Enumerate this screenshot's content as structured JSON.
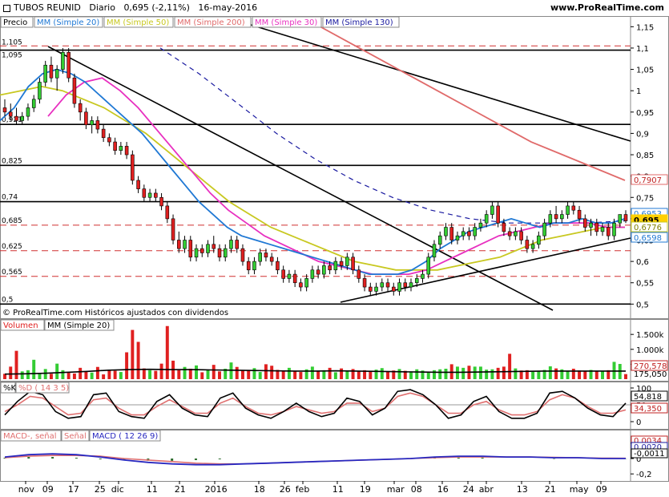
{
  "header": {
    "instrument": "TUBOS REUNID",
    "period": "Diario",
    "quote": "0,695 (-2,11%)",
    "date": "16-may-2016",
    "site": "www.ProRealTime.com"
  },
  "colors": {
    "bull": "#33cc33",
    "bear": "#e02020",
    "ma20": "#1f78d4",
    "ma50": "#c8c820",
    "ma200": "#e06a6a",
    "ma30": "#e830c0",
    "ma130": "#1a1aa0",
    "trend": "#000000"
  },
  "price_panel": {
    "label": "Precio",
    "legends": [
      "MM (Simple 20)",
      "MM (Simple 50)",
      "MM (Simple 200)",
      "MM (Simple 30)",
      "MM (Simple 130)"
    ],
    "footer": "© ProRealTime.com  Históricos ajustados con dividendos",
    "left_levels": [
      "1,105",
      "1,095",
      "0,921",
      "0,825",
      "0,74",
      "0,685",
      "0,625",
      "0,565",
      "0,5"
    ],
    "axis_ticks": [
      "1,15",
      "1,1",
      "1,05",
      "1",
      "0,95",
      "0,9",
      "0,85",
      "0,8",
      "0,75",
      "0,7",
      "0,65",
      "0,6",
      "0,55",
      "0,5"
    ],
    "tags": [
      "0,7907",
      "0,6953",
      "0,695",
      "0,6776",
      "0,6598"
    ]
  },
  "volume_panel": {
    "label": "Volumen",
    "legend": "MM (Simple 20)",
    "axis_ticks": [
      "1.500k",
      "1.000k",
      "500k"
    ],
    "tags": [
      "270,578",
      "175,050"
    ]
  },
  "stoch_panel": {
    "label": "%K",
    "legend": "%D ( 14 3 5)",
    "axis_ticks": [
      "100",
      "50",
      "0"
    ],
    "tags": [
      "54,818",
      "34,350"
    ]
  },
  "macd_panel": {
    "label": "MACD-, señal",
    "legend_signal": "Señal",
    "legend_macd": "MACD ( 12 26 9)",
    "axis_ticks": [
      "0,2",
      "0",
      "-0,2"
    ],
    "tags": [
      "0,0034",
      "0,0020",
      "-0,0011"
    ]
  },
  "x_axis": [
    "nov",
    "09",
    "17",
    "25",
    "dic",
    "11",
    "21",
    "2016",
    "18",
    "26",
    "feb",
    "11",
    "19",
    "mar",
    "08",
    "16",
    "24",
    "abr",
    "13",
    "21",
    "may",
    "09"
  ],
  "chart_data": {
    "type": "candlestick",
    "title": "TUBOS REUNID Diario 0,695 (-2,11%) 16-may-2016",
    "ylim": [
      0.48,
      1.16
    ],
    "ohlc": [
      [
        0.96,
        0.98,
        0.94,
        0.95
      ],
      [
        0.95,
        0.97,
        0.93,
        0.94
      ],
      [
        0.94,
        0.96,
        0.92,
        0.93
      ],
      [
        0.93,
        0.95,
        0.92,
        0.94
      ],
      [
        0.94,
        0.97,
        0.93,
        0.96
      ],
      [
        0.96,
        0.99,
        0.95,
        0.98
      ],
      [
        0.98,
        1.03,
        0.97,
        1.02
      ],
      [
        1.02,
        1.07,
        1.01,
        1.06
      ],
      [
        1.06,
        1.08,
        1.02,
        1.03
      ],
      [
        1.03,
        1.06,
        1.0,
        1.05
      ],
      [
        1.05,
        1.1,
        1.04,
        1.09
      ],
      [
        1.09,
        1.1,
        1.02,
        1.03
      ],
      [
        1.03,
        1.04,
        0.96,
        0.97
      ],
      [
        0.97,
        0.98,
        0.93,
        0.95
      ],
      [
        0.95,
        0.96,
        0.91,
        0.92
      ],
      [
        0.92,
        0.94,
        0.9,
        0.93
      ],
      [
        0.93,
        0.94,
        0.9,
        0.91
      ],
      [
        0.91,
        0.92,
        0.88,
        0.89
      ],
      [
        0.89,
        0.9,
        0.87,
        0.88
      ],
      [
        0.88,
        0.89,
        0.85,
        0.86
      ],
      [
        0.86,
        0.88,
        0.85,
        0.87
      ],
      [
        0.87,
        0.88,
        0.84,
        0.85
      ],
      [
        0.85,
        0.86,
        0.78,
        0.79
      ],
      [
        0.79,
        0.8,
        0.76,
        0.77
      ],
      [
        0.77,
        0.78,
        0.74,
        0.75
      ],
      [
        0.75,
        0.77,
        0.74,
        0.76
      ],
      [
        0.76,
        0.77,
        0.74,
        0.75
      ],
      [
        0.75,
        0.76,
        0.72,
        0.73
      ],
      [
        0.73,
        0.74,
        0.69,
        0.7
      ],
      [
        0.7,
        0.71,
        0.64,
        0.65
      ],
      [
        0.65,
        0.67,
        0.62,
        0.63
      ],
      [
        0.63,
        0.66,
        0.62,
        0.65
      ],
      [
        0.65,
        0.66,
        0.6,
        0.61
      ],
      [
        0.61,
        0.64,
        0.6,
        0.63
      ],
      [
        0.63,
        0.64,
        0.61,
        0.62
      ],
      [
        0.62,
        0.65,
        0.61,
        0.64
      ],
      [
        0.64,
        0.66,
        0.62,
        0.63
      ],
      [
        0.63,
        0.64,
        0.6,
        0.61
      ],
      [
        0.61,
        0.64,
        0.6,
        0.63
      ],
      [
        0.63,
        0.66,
        0.62,
        0.65
      ],
      [
        0.65,
        0.66,
        0.62,
        0.63
      ],
      [
        0.63,
        0.64,
        0.59,
        0.6
      ],
      [
        0.6,
        0.61,
        0.57,
        0.58
      ],
      [
        0.58,
        0.61,
        0.57,
        0.6
      ],
      [
        0.6,
        0.63,
        0.59,
        0.62
      ],
      [
        0.62,
        0.63,
        0.6,
        0.61
      ],
      [
        0.61,
        0.62,
        0.59,
        0.6
      ],
      [
        0.6,
        0.61,
        0.57,
        0.58
      ],
      [
        0.58,
        0.59,
        0.55,
        0.56
      ],
      [
        0.56,
        0.58,
        0.55,
        0.57
      ],
      [
        0.57,
        0.58,
        0.54,
        0.55
      ],
      [
        0.55,
        0.56,
        0.53,
        0.54
      ],
      [
        0.54,
        0.57,
        0.53,
        0.56
      ],
      [
        0.56,
        0.59,
        0.55,
        0.58
      ],
      [
        0.58,
        0.59,
        0.56,
        0.57
      ],
      [
        0.57,
        0.6,
        0.56,
        0.59
      ],
      [
        0.59,
        0.6,
        0.57,
        0.58
      ],
      [
        0.58,
        0.61,
        0.57,
        0.6
      ],
      [
        0.6,
        0.61,
        0.58,
        0.59
      ],
      [
        0.59,
        0.62,
        0.58,
        0.61
      ],
      [
        0.61,
        0.62,
        0.57,
        0.58
      ],
      [
        0.58,
        0.59,
        0.55,
        0.56
      ],
      [
        0.56,
        0.57,
        0.53,
        0.54
      ],
      [
        0.54,
        0.55,
        0.52,
        0.53
      ],
      [
        0.53,
        0.55,
        0.52,
        0.54
      ],
      [
        0.54,
        0.56,
        0.53,
        0.55
      ],
      [
        0.55,
        0.56,
        0.53,
        0.54
      ],
      [
        0.54,
        0.55,
        0.52,
        0.53
      ],
      [
        0.53,
        0.56,
        0.52,
        0.55
      ],
      [
        0.55,
        0.56,
        0.53,
        0.54
      ],
      [
        0.54,
        0.56,
        0.53,
        0.55
      ],
      [
        0.55,
        0.57,
        0.54,
        0.56
      ],
      [
        0.56,
        0.58,
        0.55,
        0.57
      ],
      [
        0.57,
        0.62,
        0.56,
        0.61
      ],
      [
        0.61,
        0.65,
        0.6,
        0.64
      ],
      [
        0.64,
        0.67,
        0.63,
        0.66
      ],
      [
        0.66,
        0.69,
        0.65,
        0.68
      ],
      [
        0.68,
        0.69,
        0.64,
        0.65
      ],
      [
        0.65,
        0.67,
        0.64,
        0.66
      ],
      [
        0.66,
        0.68,
        0.65,
        0.67
      ],
      [
        0.67,
        0.68,
        0.65,
        0.66
      ],
      [
        0.66,
        0.69,
        0.65,
        0.68
      ],
      [
        0.68,
        0.7,
        0.67,
        0.69
      ],
      [
        0.69,
        0.72,
        0.68,
        0.71
      ],
      [
        0.71,
        0.74,
        0.7,
        0.73
      ],
      [
        0.73,
        0.74,
        0.68,
        0.69
      ],
      [
        0.69,
        0.7,
        0.66,
        0.67
      ],
      [
        0.67,
        0.68,
        0.65,
        0.66
      ],
      [
        0.66,
        0.68,
        0.65,
        0.67
      ],
      [
        0.67,
        0.68,
        0.64,
        0.65
      ],
      [
        0.65,
        0.66,
        0.62,
        0.63
      ],
      [
        0.63,
        0.65,
        0.62,
        0.64
      ],
      [
        0.64,
        0.67,
        0.63,
        0.66
      ],
      [
        0.66,
        0.7,
        0.65,
        0.69
      ],
      [
        0.69,
        0.72,
        0.68,
        0.71
      ],
      [
        0.71,
        0.73,
        0.69,
        0.7
      ],
      [
        0.7,
        0.72,
        0.69,
        0.71
      ],
      [
        0.71,
        0.74,
        0.7,
        0.73
      ],
      [
        0.73,
        0.74,
        0.71,
        0.72
      ],
      [
        0.72,
        0.73,
        0.69,
        0.7
      ],
      [
        0.7,
        0.71,
        0.67,
        0.68
      ],
      [
        0.68,
        0.7,
        0.66,
        0.69
      ],
      [
        0.69,
        0.7,
        0.66,
        0.67
      ],
      [
        0.67,
        0.69,
        0.66,
        0.68
      ],
      [
        0.68,
        0.69,
        0.65,
        0.66
      ],
      [
        0.66,
        0.7,
        0.65,
        0.69
      ],
      [
        0.69,
        0.71,
        0.68,
        0.71
      ],
      [
        0.71,
        0.72,
        0.69,
        0.695
      ]
    ],
    "indicators": {
      "ma20": [
        0.93,
        0.96,
        1.01,
        1.04,
        1.05,
        1.04,
        1.02,
        0.99,
        0.96,
        0.93,
        0.9,
        0.86,
        0.82,
        0.78,
        0.74,
        0.71,
        0.68,
        0.66,
        0.65,
        0.64,
        0.63,
        0.62,
        0.61,
        0.6,
        0.59,
        0.58,
        0.57,
        0.57,
        0.57,
        0.58,
        0.6,
        0.63,
        0.65,
        0.67,
        0.68,
        0.69,
        0.7,
        0.69,
        0.68,
        0.69,
        0.69,
        0.7,
        0.69,
        0.69,
        0.7
      ],
      "ma50": [
        0.99,
        1.0,
        1.01,
        1.0,
        0.98,
        0.96,
        0.93,
        0.9,
        0.86,
        0.82,
        0.78,
        0.74,
        0.71,
        0.68,
        0.66,
        0.64,
        0.62,
        0.6,
        0.59,
        0.58,
        0.58,
        0.58,
        0.59,
        0.6,
        0.61,
        0.63,
        0.65,
        0.66,
        0.67,
        0.68,
        0.68
      ],
      "ma200": [
        1.16,
        1.12,
        1.08,
        1.04,
        1.0,
        0.96,
        0.92,
        0.88,
        0.85,
        0.82,
        0.79
      ],
      "ma30": [
        0.94,
        0.99,
        1.02,
        1.03,
        1.0,
        0.96,
        0.91,
        0.86,
        0.81,
        0.76,
        0.72,
        0.69,
        0.66,
        0.64,
        0.62,
        0.6,
        0.59,
        0.58,
        0.57,
        0.57,
        0.57,
        0.58,
        0.6,
        0.62,
        0.64,
        0.66,
        0.67,
        0.68,
        0.69,
        0.69,
        0.69,
        0.68,
        0.68
      ],
      "ma130": [
        1.1,
        1.04,
        0.97,
        0.9,
        0.84,
        0.79,
        0.75,
        0.72,
        0.7,
        0.69,
        0.69,
        0.69,
        0.695
      ]
    },
    "volume": [
      180,
      420,
      950,
      260,
      300,
      650,
      210,
      340,
      180,
      520,
      300,
      240,
      190,
      380,
      260,
      220,
      410,
      160,
      310,
      280,
      240,
      900,
      1650,
      1250,
      360,
      300,
      280,
      520,
      1780,
      620,
      300,
      410,
      350,
      460,
      230,
      320,
      480,
      260,
      350,
      560,
      410,
      280,
      300,
      370,
      240,
      500,
      450,
      310,
      290,
      380,
      260,
      240,
      330,
      420,
      260,
      300,
      380,
      230,
      360,
      290,
      340,
      280,
      300,
      250,
      320,
      370,
      260,
      290,
      340,
      280,
      260,
      330,
      290,
      240,
      300,
      330,
      350,
      500,
      420,
      380,
      450,
      420,
      420,
      320,
      330,
      380,
      420,
      850,
      360,
      290,
      300,
      250,
      270,
      310,
      430,
      360,
      330,
      280,
      350,
      290,
      280,
      310,
      260,
      270,
      300,
      580,
      510,
      170
    ],
    "volume_ma20": [
      170,
      180,
      200,
      230,
      260,
      300,
      320,
      330,
      320,
      320,
      310,
      300,
      290,
      280,
      270,
      270,
      280,
      270,
      260,
      250,
      240,
      230,
      230,
      240,
      250,
      260,
      270,
      270,
      270,
      270,
      270
    ],
    "stoch_k": [
      20,
      60,
      90,
      80,
      30,
      10,
      15,
      80,
      85,
      30,
      15,
      10,
      60,
      80,
      40,
      20,
      15,
      70,
      85,
      40,
      20,
      10,
      30,
      55,
      30,
      15,
      25,
      70,
      60,
      20,
      40,
      90,
      95,
      80,
      50,
      10,
      20,
      60,
      75,
      30,
      10,
      10,
      25,
      85,
      90,
      70,
      40,
      20,
      15,
      55
    ],
    "stoch_d": [
      30,
      50,
      75,
      70,
      45,
      20,
      25,
      65,
      70,
      40,
      20,
      20,
      45,
      65,
      45,
      25,
      25,
      55,
      70,
      45,
      25,
      20,
      30,
      45,
      35,
      25,
      30,
      55,
      55,
      30,
      40,
      75,
      85,
      75,
      50,
      25,
      25,
      50,
      60,
      35,
      20,
      20,
      30,
      65,
      80,
      70,
      45,
      25,
      25,
      35
    ],
    "macd": [
      0.02,
      0.05,
      0.06,
      0.05,
      0.02,
      -0.02,
      -0.05,
      -0.07,
      -0.08,
      -0.08,
      -0.07,
      -0.06,
      -0.05,
      -0.04,
      -0.03,
      -0.02,
      -0.01,
      0.0,
      0.02,
      0.03,
      0.03,
      0.02,
      0.02,
      0.01,
      0.01,
      0.0,
      0.0
    ],
    "signal": [
      0.01,
      0.03,
      0.04,
      0.04,
      0.03,
      0.0,
      -0.02,
      -0.04,
      -0.06,
      -0.07,
      -0.07,
      -0.06,
      -0.05,
      -0.04,
      -0.03,
      -0.02,
      -0.01,
      0.0,
      0.01,
      0.02,
      0.02,
      0.02,
      0.02,
      0.015,
      0.01,
      0.005,
      0.003
    ]
  }
}
